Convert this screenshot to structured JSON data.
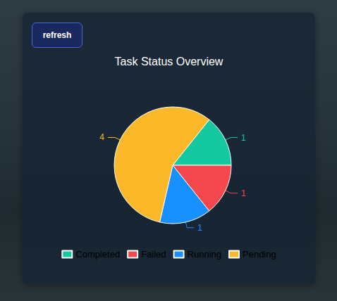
{
  "chart_data": {
    "type": "pie",
    "title": "Task Status Overview",
    "categories": [
      "Completed",
      "Failed",
      "Running",
      "Pending"
    ],
    "values": [
      1,
      1,
      1,
      4
    ],
    "colors": [
      "#14c8a0",
      "#f5484e",
      "#1890ff",
      "#fbb829"
    ],
    "data_labels": true,
    "legend": "bottom"
  },
  "button": {
    "label": "refresh"
  }
}
